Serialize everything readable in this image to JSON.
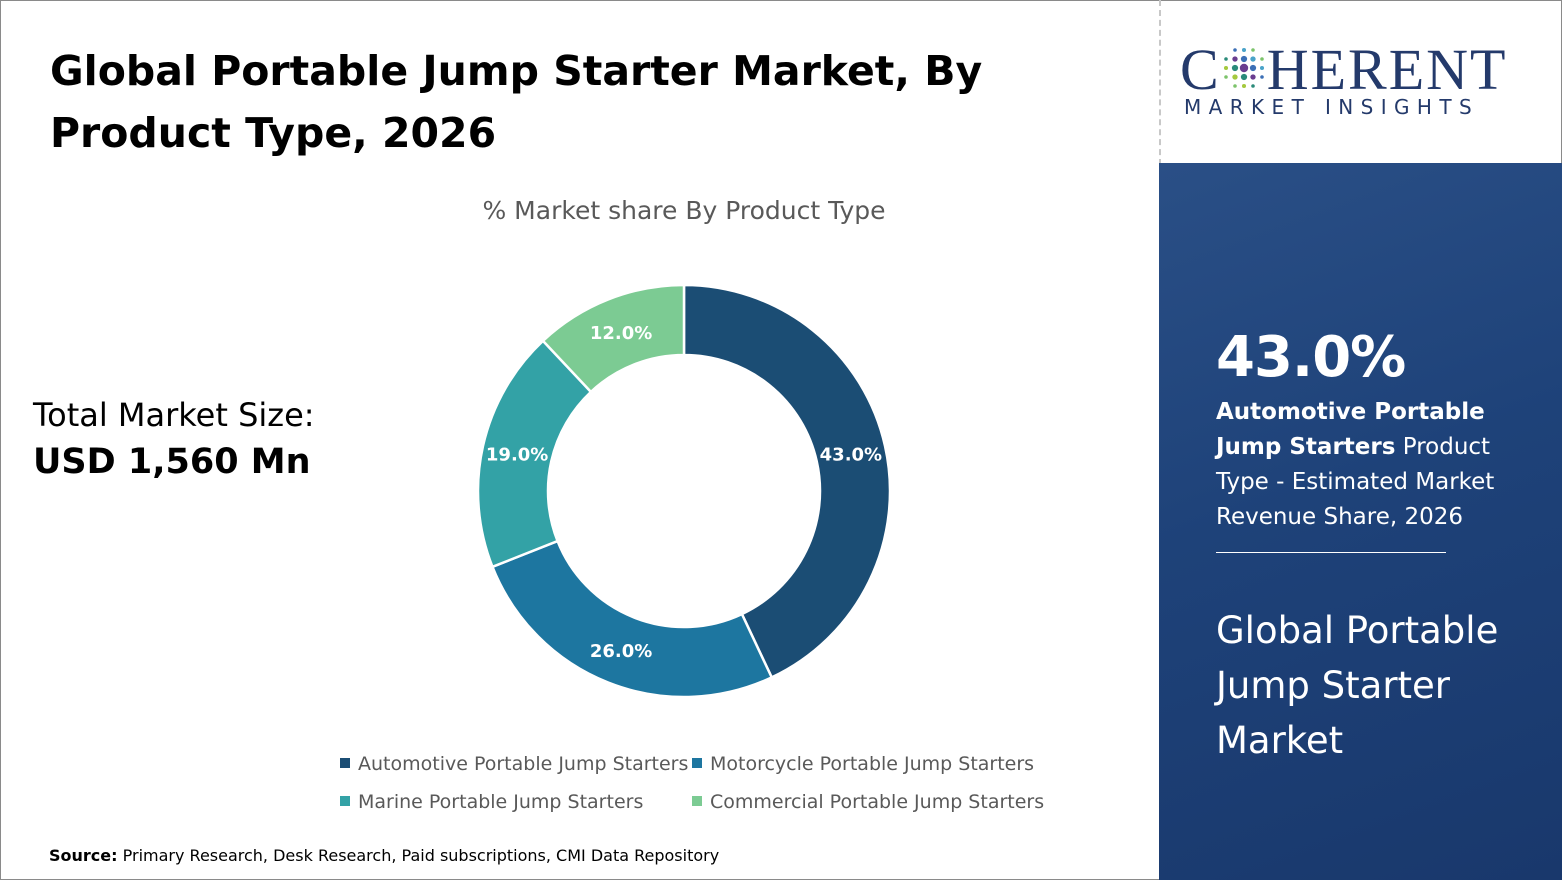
{
  "title": "Global Portable Jump Starter Market, By Product Type, 2026",
  "logo": {
    "brand": "COHERENT",
    "brand_first": "C",
    "brand_rest": "HERENT",
    "tagline": "MARKET INSIGHTS"
  },
  "total_market": {
    "label": "Total Market Size:",
    "value": "USD 1,560 Mn"
  },
  "highlight": {
    "value": "43.0%",
    "segment": "Automotive Portable Jump Starters",
    "description": "Product Type - Estimated Market Revenue Share, 2026",
    "market_name": "Global Portable Jump Starter Market"
  },
  "source": {
    "label": "Source:",
    "text": "Primary Research, Desk Research, Paid subscriptions, CMI Data Repository"
  },
  "colors": {
    "panel": "#1e4279",
    "brand": "#243a6b"
  },
  "chart_data": {
    "type": "pie",
    "subtype": "donut",
    "title": "% Market share By Product Type",
    "legend_position": "bottom",
    "series": [
      {
        "name": "Automotive Portable Jump Starters",
        "value": 43.0,
        "label": "43.0%",
        "color": "#1b4d74"
      },
      {
        "name": "Motorcycle Portable Jump Starters",
        "value": 26.0,
        "label": "26.0%",
        "color": "#1d76a0"
      },
      {
        "name": "Marine Portable Jump Starters",
        "value": 19.0,
        "label": "19.0%",
        "color": "#33a2a6"
      },
      {
        "name": "Commercial Portable Jump Starters",
        "value": 12.0,
        "label": "12.0%",
        "color": "#7ccb93"
      }
    ]
  }
}
